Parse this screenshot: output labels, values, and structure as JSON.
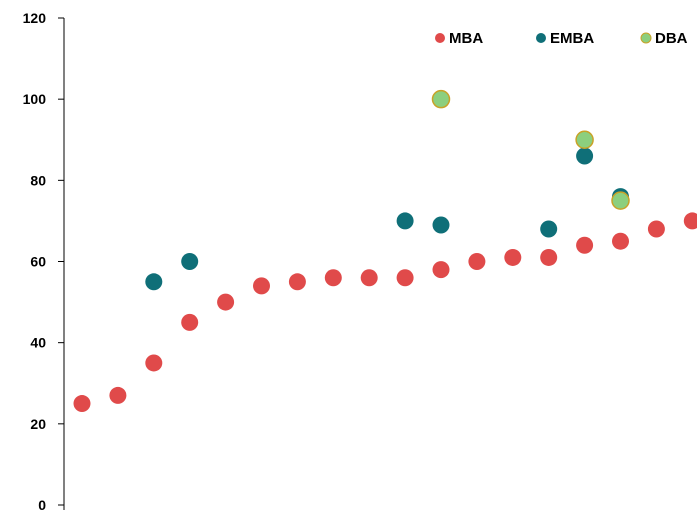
{
  "chart_data": {
    "type": "scatter",
    "title": "",
    "xlabel": "",
    "ylabel": "",
    "ylim": [
      0,
      120
    ],
    "y_ticks": [
      "0",
      "20",
      "40",
      "60",
      "80",
      "100",
      "120"
    ],
    "grid": false,
    "legend_position": "top-right",
    "series": [
      {
        "name": "MBA",
        "color": "#e04a4a",
        "points": [
          {
            "x": 1,
            "y": 25
          },
          {
            "x": 2,
            "y": 27
          },
          {
            "x": 3,
            "y": 35
          },
          {
            "x": 4,
            "y": 45
          },
          {
            "x": 5,
            "y": 50
          },
          {
            "x": 6,
            "y": 54
          },
          {
            "x": 7,
            "y": 55
          },
          {
            "x": 8,
            "y": 56
          },
          {
            "x": 9,
            "y": 56
          },
          {
            "x": 10,
            "y": 56
          },
          {
            "x": 11,
            "y": 58
          },
          {
            "x": 12,
            "y": 60
          },
          {
            "x": 13,
            "y": 61
          },
          {
            "x": 14,
            "y": 61
          },
          {
            "x": 15,
            "y": 64
          },
          {
            "x": 16,
            "y": 65
          },
          {
            "x": 17,
            "y": 68
          },
          {
            "x": 18,
            "y": 70
          }
        ]
      },
      {
        "name": "EMBA",
        "color": "#0f6f78",
        "points": [
          {
            "x": 3,
            "y": 55
          },
          {
            "x": 4,
            "y": 60
          },
          {
            "x": 10,
            "y": 70
          },
          {
            "x": 11,
            "y": 69
          },
          {
            "x": 14,
            "y": 68
          },
          {
            "x": 15,
            "y": 86
          },
          {
            "x": 16,
            "y": 76
          }
        ]
      },
      {
        "name": "DBA",
        "color": "#8ccf7e",
        "stroke": "#c9a227",
        "points": [
          {
            "x": 11,
            "y": 100
          },
          {
            "x": 15,
            "y": 90
          },
          {
            "x": 16,
            "y": 75
          }
        ]
      }
    ]
  }
}
